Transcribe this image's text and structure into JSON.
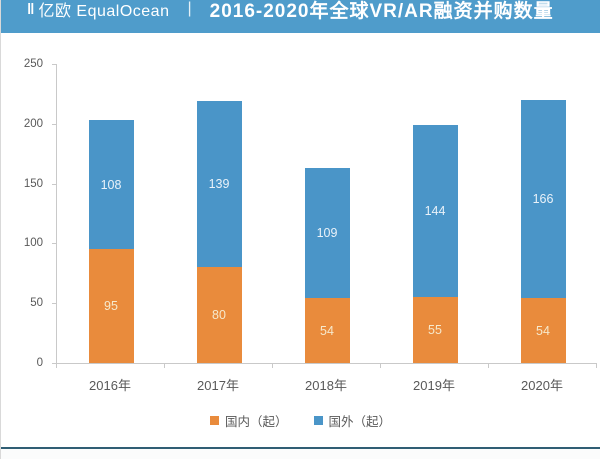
{
  "header": {
    "logo_mark": "‖",
    "logo_text": "亿欧 EqualOcean",
    "separator": "|",
    "title": "2016-2020年全球VR/AR融资并购数量"
  },
  "chart_data": {
    "type": "bar",
    "stacked": true,
    "categories": [
      "2016年",
      "2017年",
      "2018年",
      "2019年",
      "2020年"
    ],
    "series": [
      {
        "name": "国内（起）",
        "color": "#E98B3C",
        "label_color": "#F6E9CC",
        "values": [
          95,
          80,
          54,
          55,
          54
        ]
      },
      {
        "name": "国外（起）",
        "color": "#4A95C8",
        "label_color": "#EAF2F9",
        "values": [
          108,
          139,
          109,
          144,
          166
        ]
      }
    ],
    "totals": [
      203,
      219,
      163,
      199,
      220
    ],
    "ylim": [
      0,
      250
    ],
    "yticks": [
      0,
      50,
      100,
      150,
      200,
      250
    ],
    "grid": false,
    "legend_position": "bottom"
  },
  "colors": {
    "header_background": "#4F9CCB",
    "axis_line": "#c9c9c9",
    "tick_text": "#595959",
    "footer_line": "#305E74"
  }
}
